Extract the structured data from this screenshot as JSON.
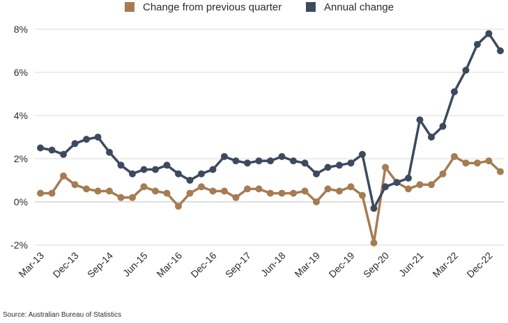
{
  "chart_data": {
    "type": "line",
    "title": "",
    "xlabel": "",
    "ylabel": "",
    "ylim": [
      -2,
      8
    ],
    "y_ticks": [
      {
        "value": -2,
        "label": "-2%"
      },
      {
        "value": 0,
        "label": "0%"
      },
      {
        "value": 2,
        "label": "2%"
      },
      {
        "value": 4,
        "label": "4%"
      },
      {
        "value": 6,
        "label": "6%"
      },
      {
        "value": 8,
        "label": "8%"
      }
    ],
    "x": [
      "Mar-13",
      "Jun-13",
      "Sep-13",
      "Dec-13",
      "Mar-14",
      "Jun-14",
      "Sep-14",
      "Dec-14",
      "Mar-15",
      "Jun-15",
      "Sep-15",
      "Dec-15",
      "Mar-16",
      "Jun-16",
      "Sep-16",
      "Dec-16",
      "Mar-17",
      "Jun-17",
      "Sep-17",
      "Dec-17",
      "Mar-18",
      "Jun-18",
      "Sep-18",
      "Dec-18",
      "Mar-19",
      "Jun-19",
      "Sep-19",
      "Dec-19",
      "Mar-20",
      "Jun-20",
      "Sep-20",
      "Dec-20",
      "Mar-21",
      "Jun-21",
      "Sep-21",
      "Dec-21",
      "Mar-22",
      "Jun-22",
      "Sep-22",
      "Dec-22",
      "Mar-23"
    ],
    "x_tick_labels": [
      "Mar-13",
      "Dec-13",
      "Sep-14",
      "Jun-15",
      "Mar-16",
      "Dec-16",
      "Sep-17",
      "Jun-18",
      "Mar-19",
      "Dec-19",
      "Sep-20",
      "Jun-21",
      "Mar-22",
      "Dec-22"
    ],
    "series": [
      {
        "name": "Change from previous quarter",
        "color": "#a67c52",
        "values": [
          0.4,
          0.4,
          1.2,
          0.8,
          0.6,
          0.5,
          0.5,
          0.2,
          0.2,
          0.7,
          0.5,
          0.4,
          -0.2,
          0.4,
          0.7,
          0.5,
          0.5,
          0.2,
          0.6,
          0.6,
          0.4,
          0.4,
          0.4,
          0.5,
          0.0,
          0.6,
          0.5,
          0.7,
          0.3,
          -1.9,
          1.6,
          0.9,
          0.6,
          0.8,
          0.8,
          1.3,
          2.1,
          1.8,
          1.8,
          1.9,
          1.4
        ]
      },
      {
        "name": "Annual change",
        "color": "#3d4a5e",
        "values": [
          2.5,
          2.4,
          2.2,
          2.7,
          2.9,
          3.0,
          2.3,
          1.7,
          1.3,
          1.5,
          1.5,
          1.7,
          1.3,
          1.0,
          1.3,
          1.5,
          2.1,
          1.9,
          1.8,
          1.9,
          1.9,
          2.1,
          1.9,
          1.8,
          1.3,
          1.6,
          1.7,
          1.8,
          2.2,
          -0.3,
          0.7,
          0.9,
          1.1,
          3.8,
          3.0,
          3.5,
          5.1,
          6.1,
          7.3,
          7.8,
          7.0
        ]
      }
    ],
    "grid": "horizontal",
    "legend_position": "top"
  },
  "source": "Source: Australian Bureau of Statistics"
}
